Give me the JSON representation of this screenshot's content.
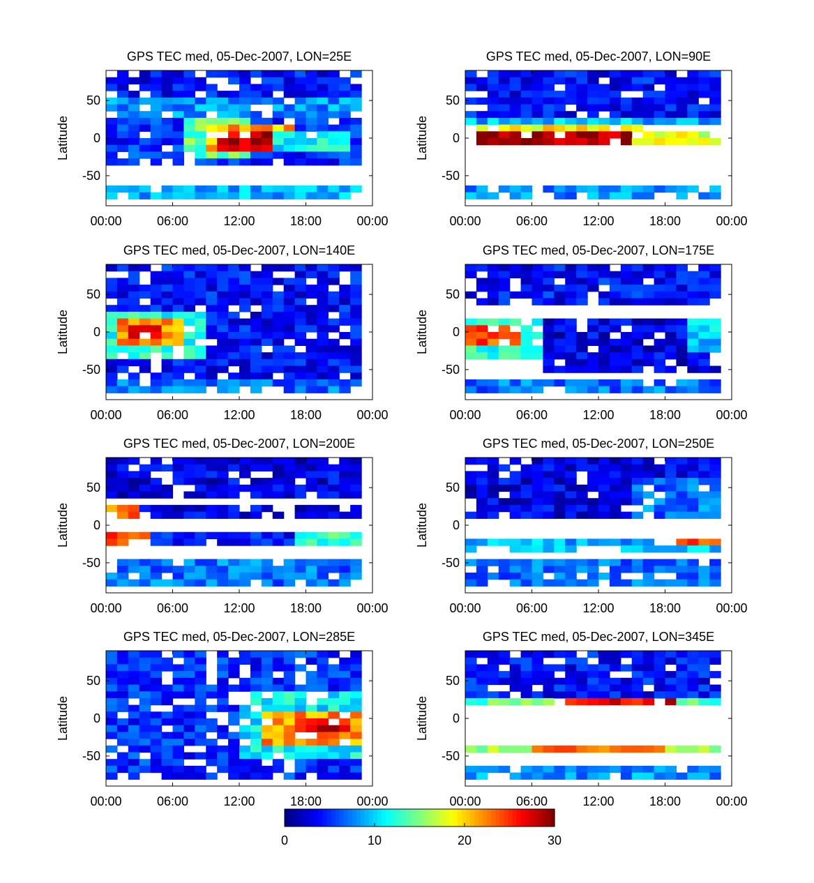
{
  "colorbar": {
    "min": 0,
    "max": 30,
    "ticks": [
      "0",
      "10",
      "20",
      "30"
    ],
    "colormap": "jet"
  },
  "chart_data": [
    {
      "type": "heatmap",
      "title": "GPS TEC med, 05-Dec-2007, LON=25E",
      "ylabel": "Latitude",
      "xlabel": "",
      "xticks": [
        "00:00",
        "06:00",
        "12:00",
        "18:00",
        "00:00"
      ],
      "yticks": [
        "50",
        "0",
        "-50"
      ],
      "xlim": [
        0,
        24
      ],
      "ylim": [
        -90,
        90
      ],
      "features": [
        {
          "x": [
            0,
            23
          ],
          "lat": [
            40,
            90
          ],
          "value": 4
        },
        {
          "x": [
            0,
            23
          ],
          "lat": [
            30,
            50
          ],
          "value": 8
        },
        {
          "x": [
            0,
            23
          ],
          "lat": [
            -35,
            30
          ],
          "value": 5
        },
        {
          "x": [
            7,
            13
          ],
          "lat": [
            -25,
            25
          ],
          "value": 14
        },
        {
          "x": [
            9,
            17
          ],
          "lat": [
            -22,
            18
          ],
          "value": 21
        },
        {
          "x": [
            10,
            16
          ],
          "lat": [
            -15,
            10
          ],
          "value": 28
        },
        {
          "x": [
            15,
            22
          ],
          "lat": [
            -20,
            5
          ],
          "value": 11
        },
        {
          "x": [
            0,
            23
          ],
          "lat": [
            -85,
            -60
          ],
          "value": 9
        }
      ]
    },
    {
      "type": "heatmap",
      "title": "GPS TEC med, 05-Dec-2007, LON=90E",
      "ylabel": "Latitude",
      "xlabel": "",
      "xticks": [
        "00:00",
        "06:00",
        "12:00",
        "18:00",
        "00:00"
      ],
      "yticks": [
        "50",
        "0",
        "-50"
      ],
      "xlim": [
        0,
        24
      ],
      "ylim": [
        -90,
        90
      ],
      "features": [
        {
          "x": [
            0,
            23
          ],
          "lat": [
            30,
            90
          ],
          "value": 4
        },
        {
          "x": [
            0,
            23
          ],
          "lat": [
            15,
            30
          ],
          "value": 9
        },
        {
          "x": [
            1,
            16
          ],
          "lat": [
            5,
            20
          ],
          "value": 19
        },
        {
          "x": [
            1,
            16
          ],
          "lat": [
            -12,
            8
          ],
          "value": 29
        },
        {
          "x": [
            15,
            23
          ],
          "lat": [
            -12,
            5
          ],
          "value": 18
        },
        {
          "x": [
            0,
            23
          ],
          "lat": [
            -85,
            -60
          ],
          "value": 8
        }
      ]
    },
    {
      "type": "heatmap",
      "title": "GPS TEC med, 05-Dec-2007, LON=140E",
      "ylabel": "Latitude",
      "xlabel": "",
      "xticks": [
        "00:00",
        "06:00",
        "12:00",
        "18:00",
        "00:00"
      ],
      "yticks": [
        "50",
        "0",
        "-50"
      ],
      "xlim": [
        0,
        24
      ],
      "ylim": [
        -90,
        90
      ],
      "features": [
        {
          "x": [
            0,
            23
          ],
          "lat": [
            -60,
            90
          ],
          "value": 4
        },
        {
          "x": [
            0,
            9
          ],
          "lat": [
            -40,
            30
          ],
          "value": 12
        },
        {
          "x": [
            1,
            7
          ],
          "lat": [
            -20,
            20
          ],
          "value": 22
        },
        {
          "x": [
            2,
            5
          ],
          "lat": [
            -12,
            12
          ],
          "value": 26
        },
        {
          "x": [
            0,
            23
          ],
          "lat": [
            -85,
            -65
          ],
          "value": 7
        }
      ]
    },
    {
      "type": "heatmap",
      "title": "GPS TEC med, 05-Dec-2007, LON=175E",
      "ylabel": "Latitude",
      "xlabel": "",
      "xticks": [
        "00:00",
        "06:00",
        "12:00",
        "18:00",
        "00:00"
      ],
      "yticks": [
        "50",
        "0",
        "-50"
      ],
      "xlim": [
        0,
        24
      ],
      "ylim": [
        -90,
        90
      ],
      "features": [
        {
          "x": [
            0,
            23
          ],
          "lat": [
            40,
            90
          ],
          "value": 4
        },
        {
          "x": [
            0,
            7
          ],
          "lat": [
            -40,
            20
          ],
          "value": 12
        },
        {
          "x": [
            0,
            5
          ],
          "lat": [
            -15,
            5
          ],
          "value": 24
        },
        {
          "x": [
            7,
            23
          ],
          "lat": [
            -50,
            20
          ],
          "value": 3
        },
        {
          "x": [
            20,
            23
          ],
          "lat": [
            -30,
            15
          ],
          "value": 10
        },
        {
          "x": [
            0,
            23
          ],
          "lat": [
            -85,
            -60
          ],
          "value": 7
        }
      ]
    },
    {
      "type": "heatmap",
      "title": "GPS TEC med, 05-Dec-2007, LON=200E",
      "ylabel": "Latitude",
      "xlabel": "",
      "xticks": [
        "00:00",
        "06:00",
        "12:00",
        "18:00",
        "00:00"
      ],
      "yticks": [
        "50",
        "0",
        "-50"
      ],
      "xlim": [
        0,
        24
      ],
      "ylim": [
        -90,
        90
      ],
      "features": [
        {
          "x": [
            0,
            23
          ],
          "lat": [
            40,
            90
          ],
          "value": 3
        },
        {
          "x": [
            0,
            23
          ],
          "lat": [
            5,
            30
          ],
          "value": 3
        },
        {
          "x": [
            0,
            3
          ],
          "lat": [
            5,
            30
          ],
          "value": 23
        },
        {
          "x": [
            0,
            23
          ],
          "lat": [
            -30,
            -10
          ],
          "value": 4
        },
        {
          "x": [
            0,
            4
          ],
          "lat": [
            -30,
            -10
          ],
          "value": 24
        },
        {
          "x": [
            17,
            23
          ],
          "lat": [
            -30,
            -10
          ],
          "value": 13
        },
        {
          "x": [
            0,
            23
          ],
          "lat": [
            -85,
            -45
          ],
          "value": 7
        }
      ]
    },
    {
      "type": "heatmap",
      "title": "GPS TEC med, 05-Dec-2007, LON=250E",
      "ylabel": "Latitude",
      "xlabel": "",
      "xticks": [
        "00:00",
        "06:00",
        "12:00",
        "18:00",
        "00:00"
      ],
      "yticks": [
        "50",
        "0",
        "-50"
      ],
      "xlim": [
        0,
        24
      ],
      "ylim": [
        -90,
        90
      ],
      "features": [
        {
          "x": [
            0,
            23
          ],
          "lat": [
            5,
            90
          ],
          "value": 3
        },
        {
          "x": [
            15,
            23
          ],
          "lat": [
            5,
            60
          ],
          "value": 7
        },
        {
          "x": [
            0,
            23
          ],
          "lat": [
            -35,
            -15
          ],
          "value": 9
        },
        {
          "x": [
            19,
            23
          ],
          "lat": [
            -30,
            -15
          ],
          "value": 25
        },
        {
          "x": [
            0,
            23
          ],
          "lat": [
            -85,
            -45
          ],
          "value": 7
        }
      ]
    },
    {
      "type": "heatmap",
      "title": "GPS TEC med, 05-Dec-2007, LON=285E",
      "ylabel": "Latitude",
      "xlabel": "",
      "xticks": [
        "00:00",
        "06:00",
        "12:00",
        "18:00",
        "00:00"
      ],
      "yticks": [
        "50",
        "0",
        "-50"
      ],
      "xlim": [
        0,
        24
      ],
      "ylim": [
        -90,
        90
      ],
      "features": [
        {
          "x": [
            0,
            23
          ],
          "lat": [
            -60,
            90
          ],
          "value": 5
        },
        {
          "x": [
            12,
            23
          ],
          "lat": [
            -55,
            40
          ],
          "value": 11
        },
        {
          "x": [
            14,
            23
          ],
          "lat": [
            -40,
            5
          ],
          "value": 22
        },
        {
          "x": [
            17,
            22
          ],
          "lat": [
            -20,
            0
          ],
          "value": 27
        },
        {
          "x": [
            0,
            23
          ],
          "lat": [
            -85,
            -65
          ],
          "value": 5
        }
      ]
    },
    {
      "type": "heatmap",
      "title": "GPS TEC med, 05-Dec-2007, LON=345E",
      "ylabel": "Latitude",
      "xlabel": "",
      "xticks": [
        "00:00",
        "06:00",
        "12:00",
        "18:00",
        "00:00"
      ],
      "yticks": [
        "50",
        "0",
        "-50"
      ],
      "xlim": [
        0,
        24
      ],
      "ylim": [
        -90,
        90
      ],
      "features": [
        {
          "x": [
            0,
            23
          ],
          "lat": [
            25,
            90
          ],
          "value": 4
        },
        {
          "x": [
            0,
            23
          ],
          "lat": [
            15,
            30
          ],
          "value": 14
        },
        {
          "x": [
            9,
            19
          ],
          "lat": [
            15,
            30
          ],
          "value": 27
        },
        {
          "x": [
            0,
            23
          ],
          "lat": [
            -45,
            -35
          ],
          "value": 16
        },
        {
          "x": [
            6,
            18
          ],
          "lat": [
            -45,
            -35
          ],
          "value": 24
        },
        {
          "x": [
            0,
            23
          ],
          "lat": [
            -85,
            -60
          ],
          "value": 8
        }
      ]
    }
  ]
}
